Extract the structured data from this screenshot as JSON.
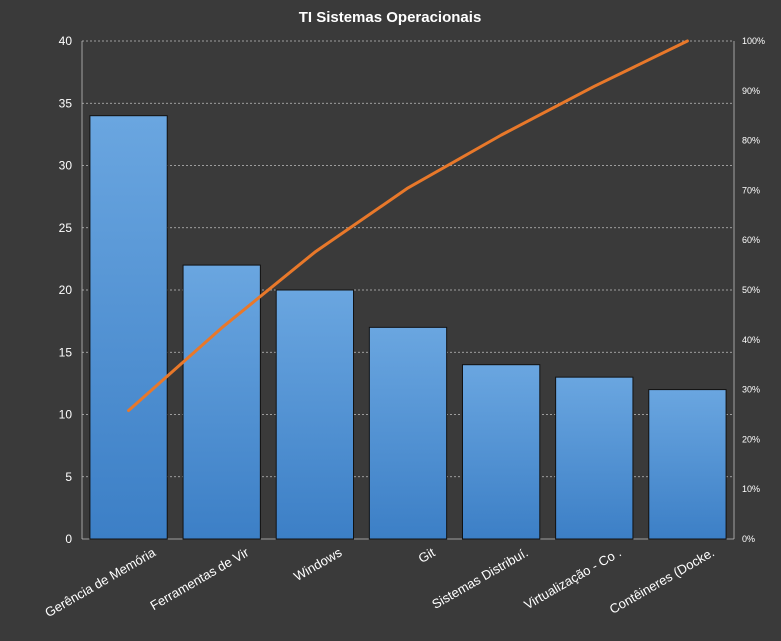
{
  "colors": {
    "background": "#3a3a3a",
    "bar_top": "#6aa6e0",
    "bar_bottom": "#3c7fc6",
    "bar_stroke": "#111111",
    "line": "#e8782a",
    "grid": "#bfbfbf",
    "text": "#ffffff"
  },
  "chart_data": {
    "type": "bar",
    "title": "TI Sistemas  Operacionais",
    "categories": [
      "Gerência de Memória",
      "Ferramentas  de Vir",
      "Windows",
      "Git",
      "Sistemas Distribuí.",
      "Virtualização - Co .",
      "Contêineres (Docke."
    ],
    "values": [
      34,
      22,
      20,
      17,
      14,
      13,
      12
    ],
    "cumulative_percent": [
      25.8,
      42.4,
      57.6,
      70.5,
      81.1,
      90.9,
      100
    ],
    "ylim": [
      0,
      40
    ],
    "yticks": [
      0,
      5,
      10,
      15,
      20,
      25,
      30,
      35,
      40
    ],
    "y2lim": [
      0,
      100
    ],
    "y2ticks": [
      "0%",
      "10%",
      "20%",
      "30%",
      "40%",
      "50%",
      "60%",
      "70%",
      "80%",
      "90%",
      "100%"
    ],
    "grid": true,
    "legend": "none"
  }
}
